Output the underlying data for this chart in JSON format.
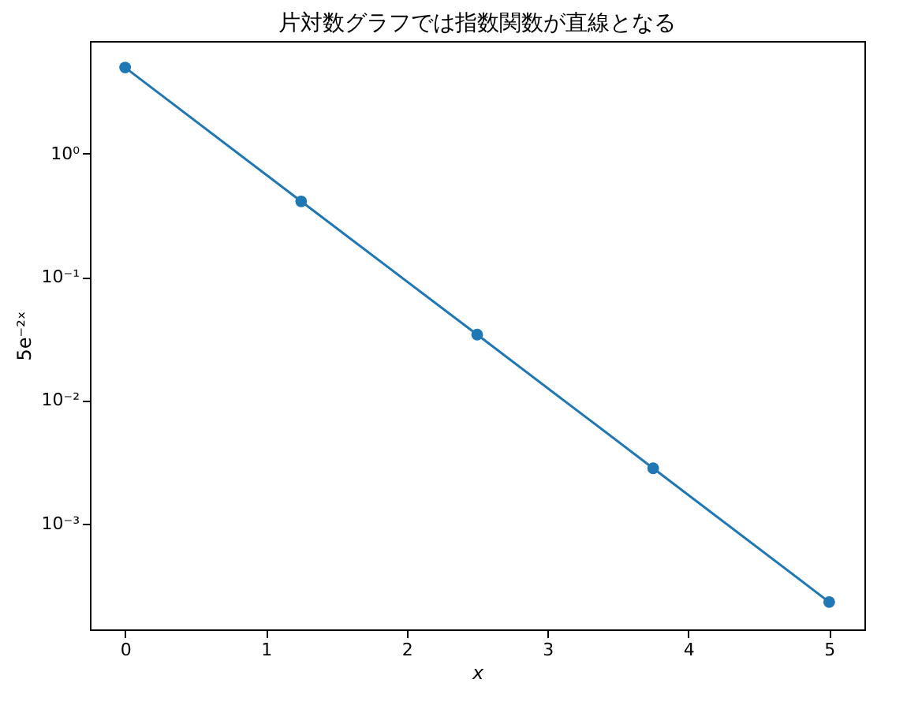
{
  "chart_data": {
    "type": "line",
    "title": "片対数グラフでは指数関数が直線となる",
    "xlabel": "x",
    "ylabel": "5e⁻²ˣ",
    "x": [
      0,
      1.25,
      2.5,
      3.75,
      5
    ],
    "series": [
      {
        "color": "#1f77b4",
        "values": [
          5,
          0.41,
          0.034,
          0.0028,
          0.00023
        ]
      }
    ],
    "xlim": [
      -0.25,
      5.25
    ],
    "xticks": [
      0,
      1,
      2,
      3,
      4,
      5
    ],
    "ylim": [
      0.000138,
      8.2
    ],
    "yticks": [
      {
        "value": 0.001,
        "label": "10⁻³"
      },
      {
        "value": 0.01,
        "label": "10⁻²"
      },
      {
        "value": 0.1,
        "label": "10⁻¹"
      },
      {
        "value": 1,
        "label": "10⁰"
      }
    ],
    "log": "y",
    "marker": "circle",
    "line_style": "solid",
    "grid": false,
    "legend": false
  }
}
